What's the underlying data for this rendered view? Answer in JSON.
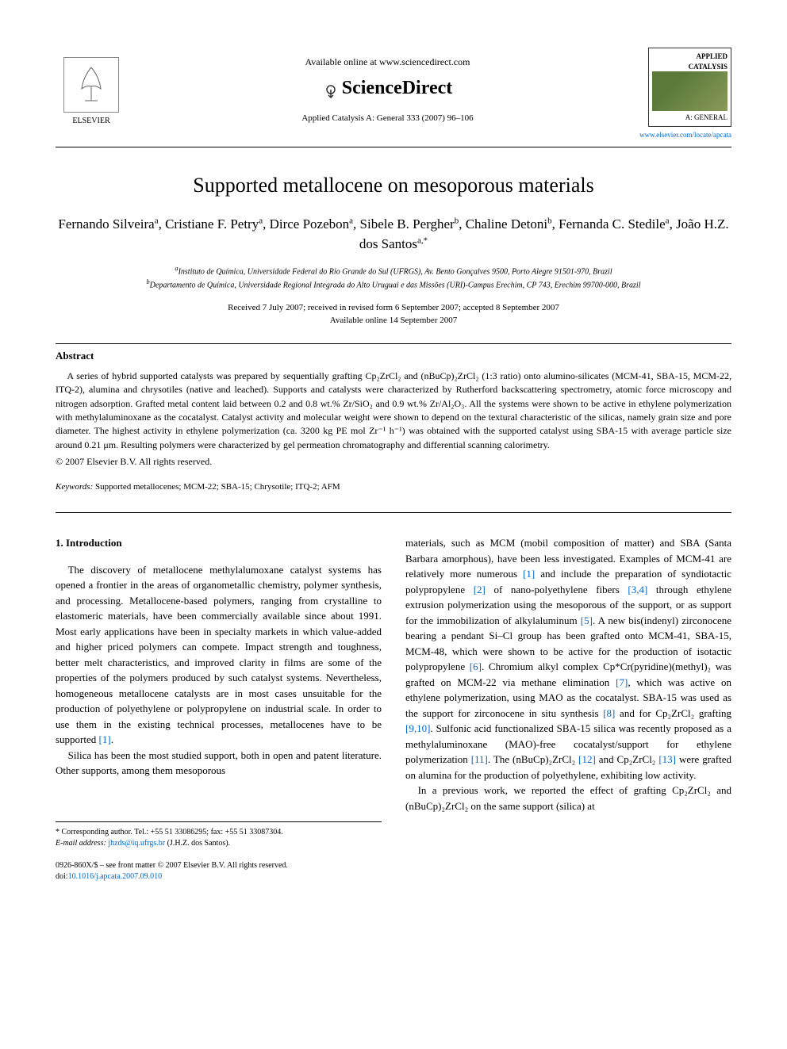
{
  "header": {
    "available_online": "Available online at www.sciencedirect.com",
    "sciencedirect": "ScienceDirect",
    "journal_ref": "Applied Catalysis A: General 333 (2007) 96–106",
    "elsevier_label": "ELSEVIER",
    "cover_title_line1": "APPLIED",
    "cover_title_line2": "CATALYSIS",
    "cover_subtitle": "A: GENERAL",
    "journal_url": "www.elsevier.com/locate/apcata"
  },
  "title": "Supported metallocene on mesoporous materials",
  "authors_html": "Fernando Silveira<sup>a</sup>, Cristiane F. Petry<sup>a</sup>, Dirce Pozebon<sup>a</sup>, Sibele B. Pergher<sup>b</sup>, Chaline Detoni<sup>b</sup>, Fernanda C. Stedile<sup>a</sup>, João H.Z. dos Santos<sup>a,*</sup>",
  "affiliations": {
    "a": "Instituto de Química, Universidade Federal do Rio Grande do Sul (UFRGS), Av. Bento Gonçalves 9500, Porto Alegre 91501-970, Brazil",
    "b": "Departamento de Química, Universidade Regional Integrada do Alto Uruguai e das Missões (URI)-Campus Erechim, CP 743, Erechim 99700-000, Brazil"
  },
  "dates": {
    "received": "Received 7 July 2007; received in revised form 6 September 2007; accepted 8 September 2007",
    "online": "Available online 14 September 2007"
  },
  "abstract": {
    "heading": "Abstract",
    "text": "A series of hybrid supported catalysts was prepared by sequentially grafting Cp₂ZrCl₂ and (nBuCp)₂ZrCl₂ (1:3 ratio) onto alumino-silicates (MCM-41, SBA-15, MCM-22, ITQ-2), alumina and chrysotiles (native and leached). Supports and catalysts were characterized by Rutherford backscattering spectrometry, atomic force microscopy and nitrogen adsorption. Grafted metal content laid between 0.2 and 0.8 wt.% Zr/SiO₂ and 0.9 wt.% Zr/Al₂O₃. All the systems were shown to be active in ethylene polymerization with methylaluminoxane as the cocatalyst. Catalyst activity and molecular weight were shown to depend on the textural characteristic of the silicas, namely grain size and pore diameter. The highest activity in ethylene polymerization (ca. 3200 kg PE mol Zr⁻¹ h⁻¹) was obtained with the supported catalyst using SBA-15 with average particle size around 0.21 μm. Resulting polymers were characterized by gel permeation chromatography and differential scanning calorimetry.",
    "copyright": "© 2007 Elsevier B.V. All rights reserved."
  },
  "keywords": {
    "label": "Keywords:",
    "text": " Supported metallocenes; MCM-22; SBA-15; Chrysotile; ITQ-2; AFM"
  },
  "intro": {
    "heading": "1. Introduction",
    "col1_p1": "The discovery of metallocene methylalumoxane catalyst systems has opened a frontier in the areas of organometallic chemistry, polymer synthesis, and processing. Metallocene-based polymers, ranging from crystalline to elastomeric materials, have been commercially available since about 1991. Most early applications have been in specialty markets in which value-added and higher priced polymers can compete. Impact strength and toughness, better melt characteristics, and improved clarity in films are some of the properties of the polymers produced by such catalyst systems. Nevertheless, homogeneous metallocene catalysts are in most cases unsuitable for the production of polyethylene or polypropylene on industrial scale. In order to use them in the existing technical processes, metallocenes have to be supported ",
    "col1_p1_ref": "[1]",
    "col1_p1_end": ".",
    "col1_p2": "Silica has been the most studied support, both in open and patent literature. Other supports, among them mesoporous",
    "col2_p1a": "materials, such as MCM (mobil composition of matter) and SBA (Santa Barbara amorphous), have been less investigated. Examples of MCM-41 are relatively more numerous ",
    "col2_ref1": "[1]",
    "col2_p1b": " and include the preparation of syndiotactic polypropylene ",
    "col2_ref2": "[2]",
    "col2_p1c": " of nano-polyethylene fibers ",
    "col2_ref34": "[3,4]",
    "col2_p1d": " through ethylene extrusion polymerization using the mesoporous of the support, or as support for the immobilization of alkylaluminum ",
    "col2_ref5": "[5]",
    "col2_p1e": ". A new bis(indenyl) zirconocene bearing a pendant Si–Cl group has been grafted onto MCM-41, SBA-15, MCM-48, which were shown to be active for the production of isotactic polypropylene ",
    "col2_ref6": "[6]",
    "col2_p1f": ". Chromium alkyl complex Cp*Cr(pyridine)(methyl)₂ was grafted on MCM-22 via methane elimination ",
    "col2_ref7": "[7]",
    "col2_p1g": ", which was active on ethylene polymerization, using MAO as the cocatalyst. SBA-15 was used as the support for zirconocene in situ synthesis ",
    "col2_ref8": "[8]",
    "col2_p1h": " and for Cp₂ZrCl₂ grafting ",
    "col2_ref910": "[9,10]",
    "col2_p1i": ". Sulfonic acid functionalized SBA-15 silica was recently proposed as a methylaluminoxane (MAO)-free cocatalyst/support for ethylene polymerization ",
    "col2_ref11": "[11]",
    "col2_p1j": ". The (nBuCp)₂ZrCl₂ ",
    "col2_ref12": "[12]",
    "col2_p1k": " and Cp₂ZrCl₂ ",
    "col2_ref13": "[13]",
    "col2_p1l": " were grafted on alumina for the production of polyethylene, exhibiting low activity.",
    "col2_p2": "In a previous work, we reported the effect of grafting Cp₂ZrCl₂ and (nBuCp)₂ZrCl₂ on the same support (silica) at"
  },
  "footnotes": {
    "corresponding": "* Corresponding author. Tel.: +55 51 33086295; fax: +55 51 33087304.",
    "email_label": "E-mail address:",
    "email": " jhzds@iq.ufrgs.br",
    "email_person": " (J.H.Z. dos Santos)."
  },
  "footer": {
    "line1": "0926-860X/$ – see front matter © 2007 Elsevier B.V. All rights reserved.",
    "doi": "doi:10.1016/j.apcata.2007.09.010"
  },
  "colors": {
    "link": "#0066cc",
    "text": "#000000",
    "bg": "#ffffff"
  }
}
